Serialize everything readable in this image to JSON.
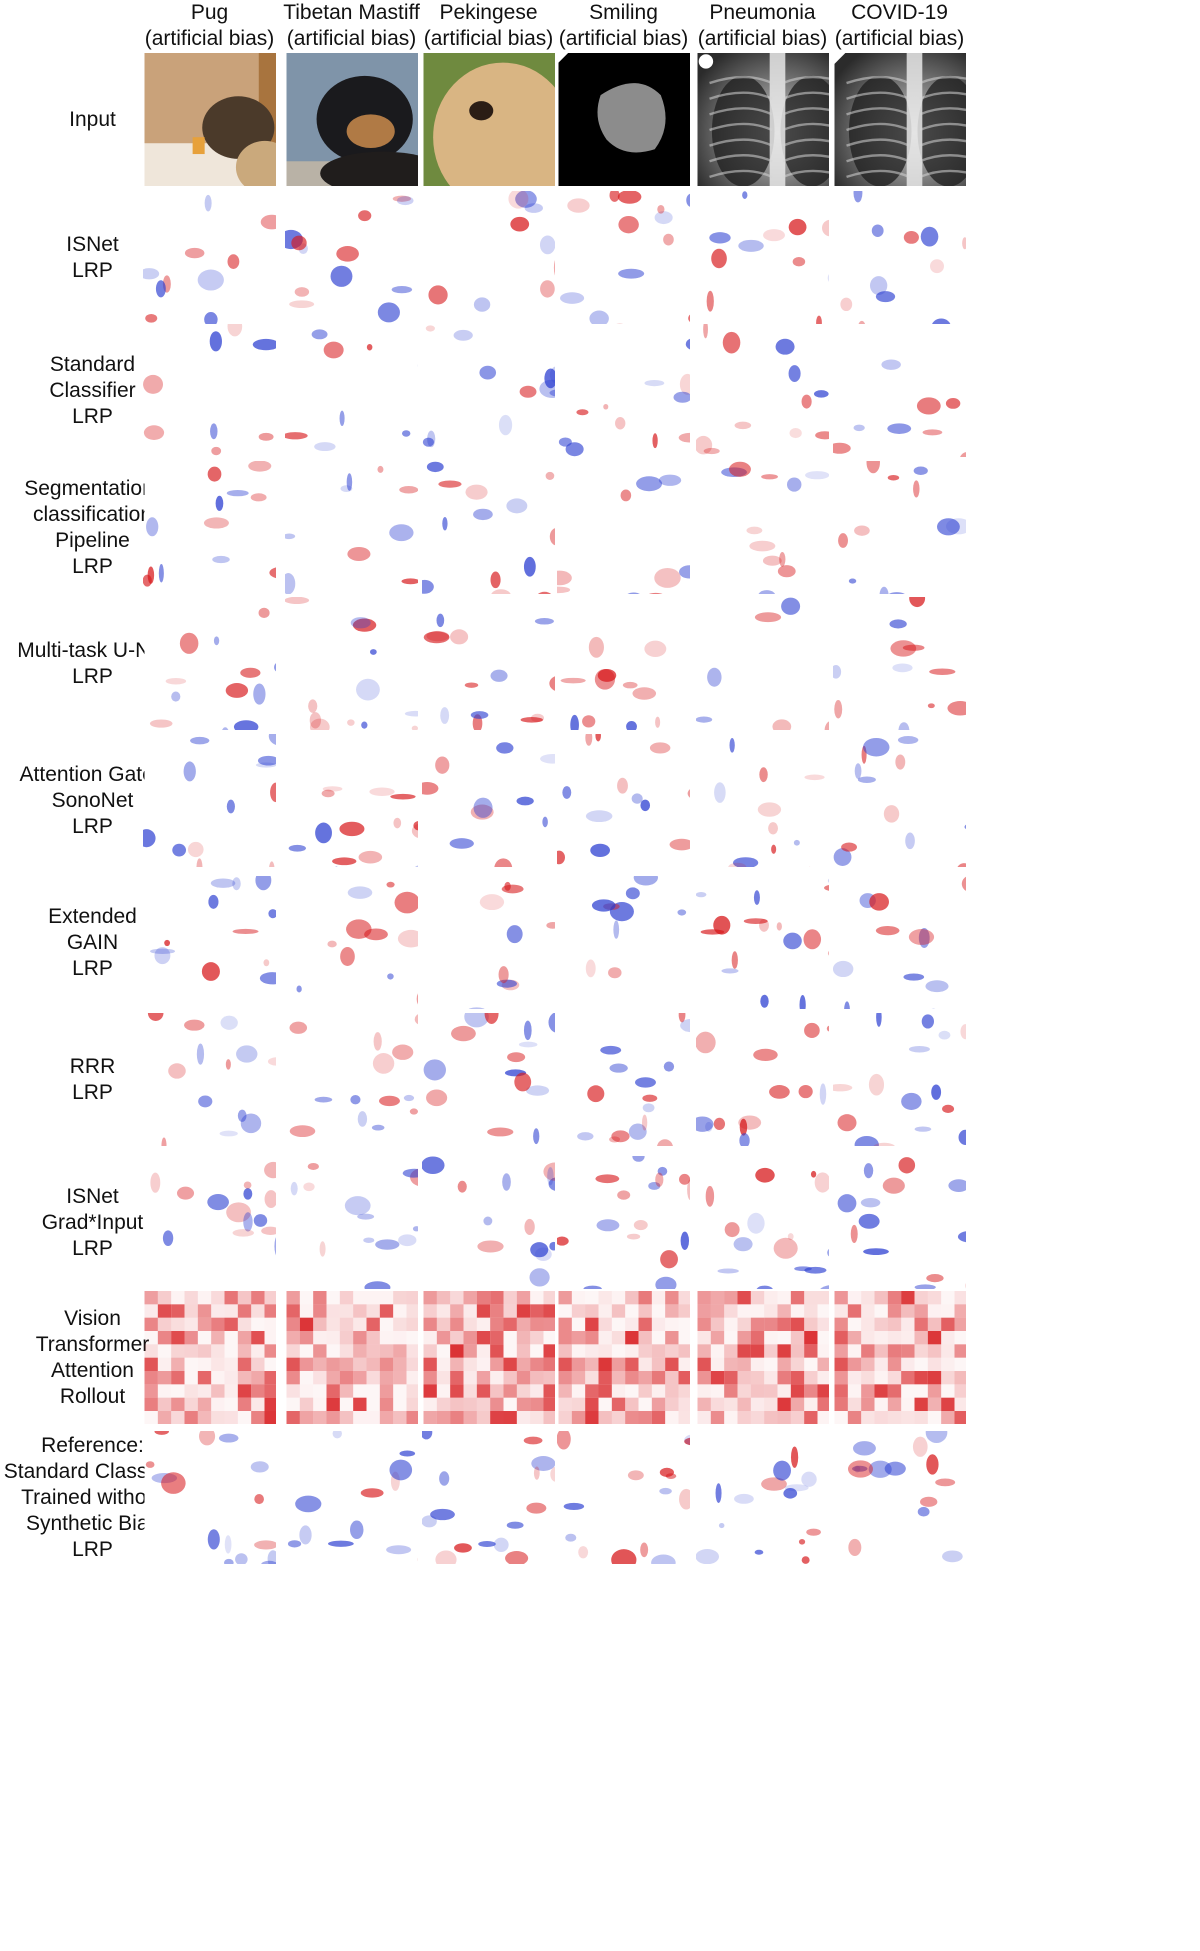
{
  "columns": [
    {
      "name": "Pug",
      "note": "(artificial bias)"
    },
    {
      "name": "Tibetan Mastiff",
      "note": "(artificial bias)"
    },
    {
      "name": "Pekingese",
      "note": "(artificial bias)"
    },
    {
      "name": "Smiling",
      "note": "(artificial bias)"
    },
    {
      "name": "Pneumonia",
      "note": "(artificial bias)"
    },
    {
      "name": "COVID-19",
      "note": "(artificial bias)"
    }
  ],
  "rows": [
    {
      "lines": [
        "Input"
      ],
      "kind": "input"
    },
    {
      "lines": [
        "ISNet",
        "LRP"
      ],
      "kind": "heatmap"
    },
    {
      "lines": [
        "Standard",
        "Classifier",
        "LRP"
      ],
      "kind": "heatmap"
    },
    {
      "lines": [
        "Segmentation-",
        "classification",
        "Pipeline",
        "LRP"
      ],
      "kind": "heatmap"
    },
    {
      "lines": [
        "Multi-task U-Net",
        "LRP"
      ],
      "kind": "heatmap"
    },
    {
      "lines": [
        "Attention Gated",
        "SonoNet",
        "LRP"
      ],
      "kind": "heatmap"
    },
    {
      "lines": [
        "Extended",
        "GAIN",
        "LRP"
      ],
      "kind": "heatmap"
    },
    {
      "lines": [
        "RRR",
        "LRP"
      ],
      "kind": "heatmap"
    },
    {
      "lines": [
        "ISNet",
        "Grad*Input",
        "LRP"
      ],
      "kind": "heatmap"
    },
    {
      "lines": [
        "Vision",
        "Transformer",
        "Attention",
        "Rollout"
      ],
      "kind": "grid"
    },
    {
      "lines": [
        "Reference:",
        "Standard Classifier",
        "Trained without",
        "Synthetic Bias",
        "LRP"
      ],
      "kind": "heatmap"
    }
  ],
  "colors": {
    "positive": "#d7191c",
    "negative": "#2c3fd1",
    "background": "#ffffff"
  }
}
